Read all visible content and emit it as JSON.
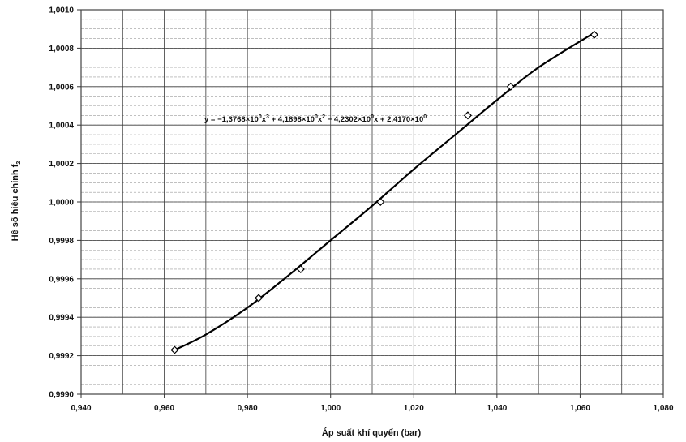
{
  "chart_data": {
    "type": "scatter",
    "xlabel": "Áp suất khí quyển (bar)",
    "ylabel_main": "Hệ số hiệu chỉnh f",
    "ylabel_sub": "2",
    "xlim": [
      0.94,
      1.08
    ],
    "ylim": [
      0.999,
      1.001
    ],
    "x_major_step": 0.02,
    "x_minor_step": 0.01,
    "y_major_step": 0.0002,
    "y_minor_step": 5e-05,
    "grid": true,
    "x_ticks": [
      "0,940",
      "0,960",
      "0,980",
      "1,000",
      "1,020",
      "1,040",
      "1,060",
      "1,080"
    ],
    "y_ticks": [
      "0,9990",
      "0,9992",
      "0,9994",
      "0,9996",
      "0,9998",
      "1,0000",
      "1,0002",
      "1,0004",
      "1,0006",
      "1,0008",
      "1,0010"
    ],
    "series": [
      {
        "marker": "diamond",
        "points": [
          {
            "x": 0.9625,
            "y": 0.99923
          },
          {
            "x": 0.9827,
            "y": 0.9995
          },
          {
            "x": 0.9928,
            "y": 0.99965
          },
          {
            "x": 1.012,
            "y": 1.0
          },
          {
            "x": 1.033,
            "y": 1.00045
          },
          {
            "x": 1.0433,
            "y": 1.0006
          },
          {
            "x": 1.0634,
            "y": 1.00087
          }
        ]
      }
    ],
    "trendline": {
      "type": "cubic",
      "x_range": [
        0.9625,
        1.0634
      ],
      "points": [
        {
          "x": 0.9625,
          "y": 0.99923
        },
        {
          "x": 0.97,
          "y": 0.99931
        },
        {
          "x": 0.98,
          "y": 0.99945
        },
        {
          "x": 0.99,
          "y": 0.99962
        },
        {
          "x": 1.0,
          "y": 0.9998
        },
        {
          "x": 1.01,
          "y": 0.99998
        },
        {
          "x": 1.02,
          "y": 1.00017
        },
        {
          "x": 1.03,
          "y": 1.00035
        },
        {
          "x": 1.04,
          "y": 1.00053
        },
        {
          "x": 1.05,
          "y": 1.0007
        },
        {
          "x": 1.0634,
          "y": 1.00088
        }
      ]
    },
    "equation": {
      "prefix": "y = −1,3768×10",
      "e1": "0",
      "t1": "x",
      "p1": "3",
      "mid1": " + 4,1898×10",
      "e2": "0",
      "t2": "x",
      "p2": "2",
      "mid2": " − 4,2302×10",
      "e3": "0",
      "t3": "x + 2,4170×10",
      "e4": "0"
    }
  }
}
